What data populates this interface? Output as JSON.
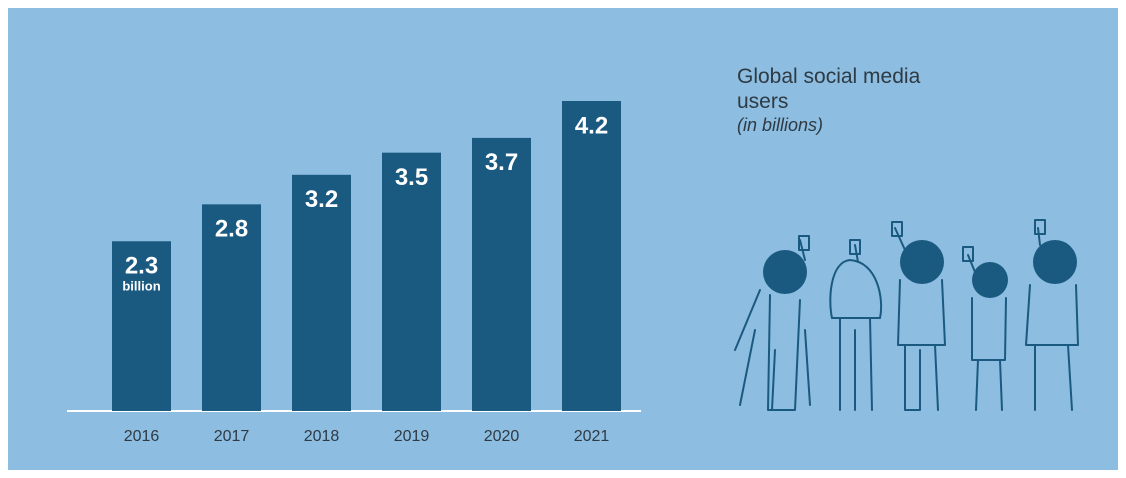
{
  "chart_data": {
    "type": "bar",
    "title": "Global social media users",
    "subtitle": "(in billions)",
    "categories": [
      "2016",
      "2017",
      "2018",
      "2019",
      "2020",
      "2021"
    ],
    "values": [
      2.3,
      2.8,
      3.2,
      3.5,
      3.7,
      4.2
    ],
    "value_unit": "billion",
    "color": "#1a5a80"
  }
}
